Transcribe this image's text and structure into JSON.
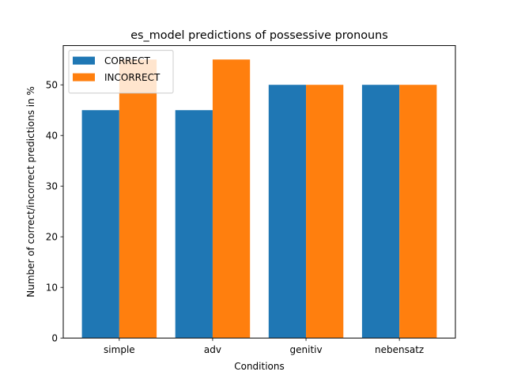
{
  "chart_data": {
    "type": "bar",
    "title": "es_model predictions of possessive pronouns",
    "xlabel": "Conditions",
    "ylabel": "Number of correct/incorrect predictions in %",
    "categories": [
      "simple",
      "adv",
      "genitiv",
      "nebensatz"
    ],
    "series": [
      {
        "name": "CORRECT",
        "values": [
          45,
          45,
          50,
          50
        ],
        "color": "#1f77b4"
      },
      {
        "name": "INCORRECT",
        "values": [
          55,
          55,
          50,
          50
        ],
        "color": "#ff7f0e"
      }
    ],
    "ylim": [
      0,
      57.75
    ],
    "yticks": [
      "0",
      "10",
      "20",
      "30",
      "40",
      "50"
    ],
    "grid": false,
    "legend_position": "upper-left"
  }
}
